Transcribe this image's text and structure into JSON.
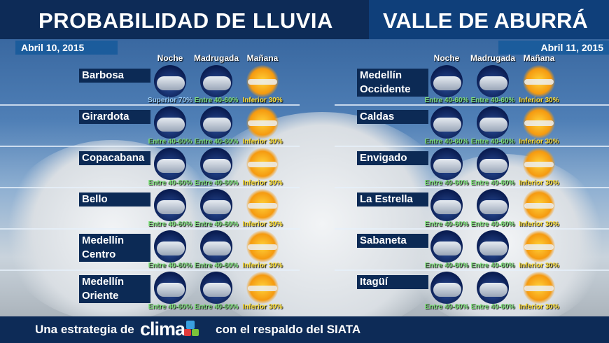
{
  "header": {
    "title_left": "PROBABILIDAD DE LLUVIA",
    "title_right": "VALLE DE ABURRÁ"
  },
  "columns": [
    "Noche",
    "Madrugada",
    "Mañana"
  ],
  "colors": {
    "entre": "#7ee07a",
    "inferior": "#ffe13a",
    "superior": "#9fd3ff"
  },
  "left": {
    "date": "Abril 10, 2015",
    "rows": [
      {
        "name": [
          "Barbosa"
        ],
        "icons": [
          "rain-cloud-icon",
          "rain-cloud-icon",
          "sun-cloud-icon"
        ],
        "labels": [
          "Superior 70%",
          "Entre 40-60%",
          "Inferior 30%"
        ]
      },
      {
        "name": [
          "Girardota"
        ],
        "icons": [
          "rain-cloud-icon",
          "rain-cloud-icon",
          "sun-cloud-icon"
        ],
        "labels": [
          "Entre 40-60%",
          "Entre 40-60%",
          "Inferior 30%"
        ]
      },
      {
        "name": [
          "Copacabana"
        ],
        "icons": [
          "rain-cloud-icon",
          "rain-cloud-icon",
          "sun-cloud-icon"
        ],
        "labels": [
          "Entre 40-60%",
          "Entre 40-60%",
          "Inferior 30%"
        ]
      },
      {
        "name": [
          "Bello"
        ],
        "icons": [
          "rain-cloud-icon",
          "rain-cloud-icon",
          "sun-cloud-icon"
        ],
        "labels": [
          "Entre 40-60%",
          "Entre 40-60%",
          "Inferior 30%"
        ]
      },
      {
        "name": [
          "Medellín",
          "Centro"
        ],
        "icons": [
          "rain-cloud-icon",
          "rain-cloud-icon",
          "sun-cloud-icon"
        ],
        "labels": [
          "Entre 40-60%",
          "Entre 40-60%",
          "Inferior 30%"
        ]
      },
      {
        "name": [
          "Medellín",
          "Oriente"
        ],
        "icons": [
          "rain-cloud-icon",
          "rain-cloud-icon",
          "sun-cloud-icon"
        ],
        "labels": [
          "Entre 40-60%",
          "Entre 40-60%",
          "Inferior 30%"
        ]
      }
    ]
  },
  "right": {
    "date": "Abril 11, 2015",
    "rows": [
      {
        "name": [
          "Medellín",
          "Occidente"
        ],
        "icons": [
          "rain-cloud-icon",
          "rain-cloud-icon",
          "sun-cloud-icon"
        ],
        "labels": [
          "Entre 40-60%",
          "Entre 40-60%",
          "Inferior 30%"
        ]
      },
      {
        "name": [
          "Caldas"
        ],
        "icons": [
          "rain-cloud-icon",
          "rain-cloud-icon",
          "sun-cloud-icon"
        ],
        "labels": [
          "Entre 40-60%",
          "Entre 40-60%",
          "Inferior 30%"
        ]
      },
      {
        "name": [
          "Envigado"
        ],
        "icons": [
          "rain-cloud-icon",
          "rain-cloud-icon",
          "sun-cloud-icon"
        ],
        "labels": [
          "Entre 40-60%",
          "Entre 40-60%",
          "Inferior 30%"
        ]
      },
      {
        "name": [
          "La Estrella"
        ],
        "icons": [
          "rain-cloud-icon",
          "rain-cloud-icon",
          "sun-cloud-icon"
        ],
        "labels": [
          "Entre 40-60%",
          "Entre 40-60%",
          "Inferior 30%"
        ]
      },
      {
        "name": [
          "Sabaneta"
        ],
        "icons": [
          "rain-cloud-icon",
          "rain-cloud-icon",
          "sun-cloud-icon"
        ],
        "labels": [
          "Entre 40-60%",
          "Entre 40-60%",
          "Inferior 30%"
        ]
      },
      {
        "name": [
          "Itagüí"
        ],
        "icons": [
          "rain-cloud-icon",
          "rain-cloud-icon",
          "sun-cloud-icon"
        ],
        "labels": [
          "Entre 40-60%",
          "Entre 40-60%",
          "Inferior 30%"
        ]
      }
    ]
  },
  "footer": {
    "prefix": "Una estrategia de",
    "logo": "clima 24/7",
    "suffix": "con el respaldo del SIATA"
  }
}
